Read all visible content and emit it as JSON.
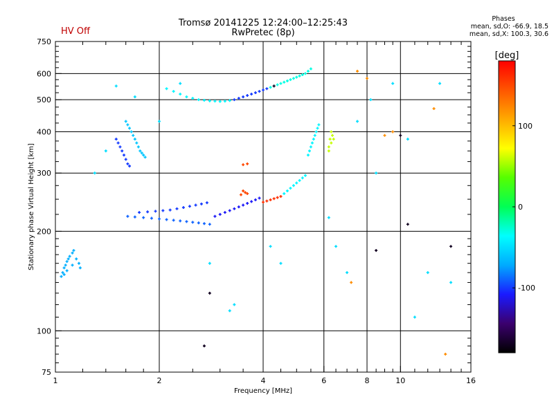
{
  "header": {
    "hv_status": "HV Off",
    "title": "Tromsø 20141225 12:24:00–12:25:43",
    "subtitle": "RwPretec (8p)"
  },
  "phases_box": {
    "title": "Phases",
    "line1": "mean, sd,O: -66.9, 18.5",
    "line2": "mean, sd,X: 100.3, 30.6"
  },
  "colorbar": {
    "label": "[deg]",
    "min": -180,
    "max": 180,
    "ticks": [
      {
        "value": 100,
        "label": "100"
      },
      {
        "value": 0,
        "label": "0"
      },
      {
        "value": -100,
        "label": "-100"
      }
    ],
    "stops": [
      "#000000",
      "#3b006e",
      "#1a1aff",
      "#00aaff",
      "#00ffff",
      "#00ff55",
      "#55ff00",
      "#ffff00",
      "#ffaa00",
      "#ff5500",
      "#ff0000"
    ]
  },
  "chart_data": {
    "type": "scatter",
    "xlabel": "Frequency [MHz]",
    "ylabel": "Stationary phase Virtual Height [km]",
    "xscale": "log",
    "yscale": "log",
    "xlim": [
      1,
      16
    ],
    "ylim": [
      75,
      750
    ],
    "grid": true,
    "xticks_major": [
      {
        "value": 1,
        "label": "1"
      },
      {
        "value": 2,
        "label": "2"
      },
      {
        "value": 4,
        "label": "4"
      },
      {
        "value": 6,
        "label": "6"
      },
      {
        "value": 8,
        "label": "8"
      },
      {
        "value": 10,
        "label": "10"
      },
      {
        "value": 16,
        "label": "16"
      }
    ],
    "xgrid": [
      2,
      4,
      6,
      8,
      10
    ],
    "yticks": [
      {
        "value": 75,
        "label": "75"
      },
      {
        "value": 100,
        "label": "100"
      },
      {
        "value": 200,
        "label": "200"
      },
      {
        "value": 300,
        "label": "300"
      },
      {
        "value": 400,
        "label": "400"
      },
      {
        "value": 500,
        "label": "500"
      },
      {
        "value": 600,
        "label": "600"
      },
      {
        "value": 750,
        "label": "750"
      }
    ],
    "ygrid": [
      100,
      200,
      300,
      400,
      500,
      600
    ],
    "traces": [
      {
        "name": "low band cluster",
        "phase": -70,
        "points": [
          [
            1.05,
            150
          ],
          [
            1.06,
            155
          ],
          [
            1.07,
            158
          ],
          [
            1.08,
            162
          ],
          [
            1.09,
            165
          ],
          [
            1.1,
            168
          ],
          [
            1.12,
            172
          ],
          [
            1.13,
            175
          ],
          [
            1.15,
            165
          ],
          [
            1.17,
            160
          ],
          [
            1.18,
            155
          ],
          [
            1.12,
            158
          ],
          [
            1.08,
            152
          ],
          [
            1.06,
            148
          ],
          [
            1.04,
            146
          ]
        ]
      },
      {
        "name": "F trace upper left",
        "phase": -60,
        "points": [
          [
            1.6,
            430
          ],
          [
            1.62,
            420
          ],
          [
            1.64,
            410
          ],
          [
            1.66,
            400
          ],
          [
            1.68,
            390
          ],
          [
            1.7,
            380
          ],
          [
            1.72,
            370
          ],
          [
            1.74,
            360
          ],
          [
            1.76,
            350
          ],
          [
            1.78,
            345
          ],
          [
            1.8,
            340
          ],
          [
            1.82,
            335
          ]
        ]
      },
      {
        "name": "F trace upper left B",
        "phase": -100,
        "points": [
          [
            1.5,
            380
          ],
          [
            1.52,
            370
          ],
          [
            1.54,
            360
          ],
          [
            1.56,
            350
          ],
          [
            1.58,
            340
          ],
          [
            1.6,
            330
          ],
          [
            1.62,
            320
          ],
          [
            1.64,
            315
          ]
        ]
      },
      {
        "name": "lower F trace",
        "phase": -90,
        "points": [
          [
            1.62,
            222
          ],
          [
            1.7,
            221
          ],
          [
            1.8,
            220
          ],
          [
            1.9,
            219
          ],
          [
            2.0,
            218
          ],
          [
            2.1,
            217
          ],
          [
            2.2,
            216
          ],
          [
            2.3,
            215
          ],
          [
            2.4,
            214
          ],
          [
            2.5,
            213
          ],
          [
            2.6,
            212
          ],
          [
            2.7,
            211
          ],
          [
            2.8,
            210
          ]
        ]
      },
      {
        "name": "lower F trace 2",
        "phase": -100,
        "points": [
          [
            1.75,
            228
          ],
          [
            1.85,
            229
          ],
          [
            1.95,
            230
          ],
          [
            2.05,
            231
          ],
          [
            2.15,
            232
          ],
          [
            2.25,
            234
          ],
          [
            2.35,
            236
          ],
          [
            2.45,
            238
          ],
          [
            2.55,
            240
          ],
          [
            2.65,
            242
          ],
          [
            2.75,
            244
          ]
        ]
      },
      {
        "name": "rising trace",
        "phase": -110,
        "points": [
          [
            2.9,
            222
          ],
          [
            3.0,
            225
          ],
          [
            3.1,
            228
          ],
          [
            3.2,
            231
          ],
          [
            3.3,
            234
          ],
          [
            3.4,
            237
          ],
          [
            3.5,
            240
          ],
          [
            3.6,
            243
          ],
          [
            3.7,
            246
          ],
          [
            3.8,
            249
          ],
          [
            3.9,
            252
          ]
        ]
      },
      {
        "name": "rising trace red",
        "phase": 160,
        "points": [
          [
            4.0,
            245
          ],
          [
            4.1,
            247
          ],
          [
            4.2,
            249
          ],
          [
            4.3,
            251
          ],
          [
            4.4,
            253
          ],
          [
            4.5,
            255
          ]
        ]
      },
      {
        "name": "rising trace cyan",
        "phase": -40,
        "points": [
          [
            4.6,
            260
          ],
          [
            4.7,
            265
          ],
          [
            4.8,
            270
          ],
          [
            4.9,
            275
          ],
          [
            5.0,
            280
          ],
          [
            5.1,
            285
          ],
          [
            5.2,
            290
          ],
          [
            5.3,
            295
          ]
        ]
      },
      {
        "name": "upper F trace",
        "phase": -40,
        "points": [
          [
            2.1,
            540
          ],
          [
            2.2,
            530
          ],
          [
            2.3,
            520
          ],
          [
            2.4,
            510
          ],
          [
            2.5,
            505
          ],
          [
            2.6,
            500
          ],
          [
            2.7,
            498
          ],
          [
            2.8,
            496
          ],
          [
            2.9,
            495
          ],
          [
            3.0,
            494
          ],
          [
            3.1,
            495
          ],
          [
            3.2,
            497
          ]
        ]
      },
      {
        "name": "upper F trace blue",
        "phase": -100,
        "points": [
          [
            3.3,
            500
          ],
          [
            3.4,
            505
          ],
          [
            3.5,
            510
          ],
          [
            3.6,
            515
          ],
          [
            3.7,
            520
          ],
          [
            3.8,
            525
          ],
          [
            3.9,
            530
          ],
          [
            4.0,
            535
          ],
          [
            4.1,
            540
          ]
        ]
      },
      {
        "name": "upper F trace cyan",
        "phase": -30,
        "points": [
          [
            4.2,
            545
          ],
          [
            4.3,
            550
          ],
          [
            4.4,
            555
          ],
          [
            4.5,
            560
          ],
          [
            4.6,
            565
          ],
          [
            4.7,
            570
          ],
          [
            4.8,
            575
          ],
          [
            4.9,
            580
          ],
          [
            5.0,
            585
          ],
          [
            5.1,
            590
          ],
          [
            5.2,
            595
          ],
          [
            5.3,
            600
          ],
          [
            5.4,
            610
          ],
          [
            5.5,
            620
          ]
        ]
      },
      {
        "name": "vertical trace near 5.5",
        "phase": -40,
        "points": [
          [
            5.4,
            340
          ],
          [
            5.45,
            350
          ],
          [
            5.5,
            360
          ],
          [
            5.55,
            370
          ],
          [
            5.6,
            380
          ],
          [
            5.65,
            390
          ],
          [
            5.7,
            400
          ],
          [
            5.75,
            410
          ],
          [
            5.8,
            420
          ]
        ]
      },
      {
        "name": "green blob",
        "phase": 60,
        "points": [
          [
            6.2,
            360
          ],
          [
            6.3,
            370
          ],
          [
            6.25,
            380
          ],
          [
            6.35,
            390
          ],
          [
            6.3,
            400
          ],
          [
            6.4,
            380
          ],
          [
            6.2,
            350
          ]
        ]
      },
      {
        "name": "orange spots",
        "phase": 150,
        "points": [
          [
            3.5,
            265
          ],
          [
            3.55,
            262
          ],
          [
            3.6,
            260
          ],
          [
            3.45,
            258
          ],
          [
            3.6,
            320
          ],
          [
            3.5,
            318
          ]
        ]
      },
      {
        "name": "scattered",
        "phase": -50,
        "points": [
          [
            1.3,
            300
          ],
          [
            1.4,
            350
          ],
          [
            1.5,
            550
          ],
          [
            1.7,
            510
          ],
          [
            2.0,
            430
          ],
          [
            2.3,
            560
          ],
          [
            2.8,
            160
          ],
          [
            3.2,
            115
          ],
          [
            3.3,
            120
          ],
          [
            4.2,
            180
          ],
          [
            4.5,
            160
          ],
          [
            6.2,
            220
          ],
          [
            6.5,
            180
          ],
          [
            7.0,
            150
          ],
          [
            7.5,
            430
          ],
          [
            8.2,
            500
          ],
          [
            8.5,
            300
          ],
          [
            9.5,
            560
          ],
          [
            10.5,
            380
          ],
          [
            11.0,
            110
          ],
          [
            12.0,
            150
          ],
          [
            13.0,
            560
          ],
          [
            14.0,
            140
          ]
        ]
      },
      {
        "name": "sparse warm",
        "phase": 120,
        "points": [
          [
            7.5,
            610
          ],
          [
            8.0,
            580
          ],
          [
            9.0,
            390
          ],
          [
            12.5,
            470
          ],
          [
            13.5,
            85
          ],
          [
            7.2,
            140
          ],
          [
            9.5,
            400
          ]
        ]
      },
      {
        "name": "sparse dark",
        "phase": -170,
        "points": [
          [
            2.8,
            130
          ],
          [
            2.7,
            90
          ],
          [
            4.3,
            550
          ],
          [
            10.0,
            390
          ],
          [
            10.5,
            210
          ],
          [
            8.5,
            175
          ],
          [
            14.0,
            180
          ]
        ]
      }
    ]
  }
}
